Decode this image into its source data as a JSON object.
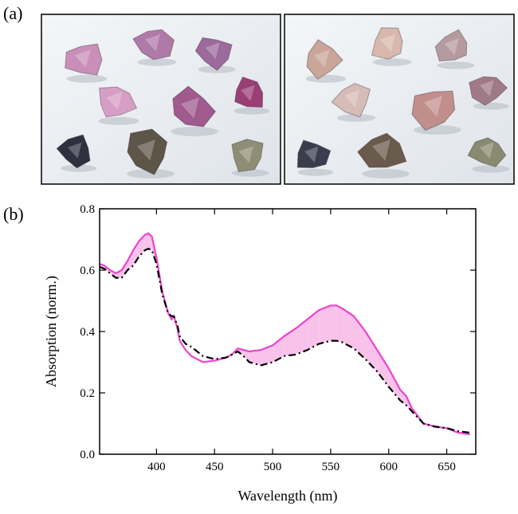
{
  "panel_labels": [
    "(a)",
    "(b)"
  ],
  "chart_data": {
    "type": "line",
    "x_label": "Wavelength (nm)",
    "y_label": "Absorption (norm.)",
    "xlim": [
      351,
      675
    ],
    "ylim": [
      0,
      0.8
    ],
    "xticks": [
      400,
      450,
      500,
      550,
      600,
      650
    ],
    "yticks": [
      {
        "value": 0,
        "label": "0.0"
      },
      0.2,
      0.4,
      0.6,
      0.8
    ],
    "fill_color": "#f9c2ea",
    "x": [
      351,
      355,
      360,
      365,
      370,
      375,
      380,
      385,
      390,
      393,
      396,
      400,
      405,
      410,
      413,
      415,
      418,
      420,
      425,
      430,
      440,
      450,
      460,
      465,
      470,
      475,
      480,
      490,
      500,
      510,
      520,
      530,
      540,
      550,
      555,
      560,
      570,
      580,
      590,
      600,
      610,
      615,
      620,
      630,
      640,
      650,
      660,
      670
    ],
    "series": [
      {
        "color": "#ee44cc",
        "style": "solid",
        "values": [
          0.62,
          0.615,
          0.6,
          0.59,
          0.6,
          0.63,
          0.665,
          0.695,
          0.715,
          0.72,
          0.71,
          0.64,
          0.53,
          0.46,
          0.44,
          0.45,
          0.41,
          0.37,
          0.34,
          0.32,
          0.3,
          0.305,
          0.315,
          0.325,
          0.345,
          0.34,
          0.335,
          0.34,
          0.355,
          0.385,
          0.41,
          0.44,
          0.47,
          0.485,
          0.485,
          0.475,
          0.45,
          0.4,
          0.34,
          0.28,
          0.21,
          0.19,
          0.15,
          0.1,
          0.09,
          0.085,
          0.07,
          0.065
        ]
      },
      {
        "color": "#000000",
        "style": "dashdot",
        "values": [
          0.61,
          0.605,
          0.59,
          0.575,
          0.575,
          0.6,
          0.615,
          0.645,
          0.665,
          0.67,
          0.665,
          0.62,
          0.52,
          0.46,
          0.45,
          0.45,
          0.42,
          0.385,
          0.36,
          0.35,
          0.32,
          0.31,
          0.315,
          0.325,
          0.335,
          0.32,
          0.3,
          0.29,
          0.3,
          0.32,
          0.325,
          0.34,
          0.36,
          0.37,
          0.37,
          0.365,
          0.345,
          0.31,
          0.27,
          0.22,
          0.175,
          0.16,
          0.14,
          0.1,
          0.09,
          0.085,
          0.075,
          0.07
        ]
      }
    ]
  }
}
